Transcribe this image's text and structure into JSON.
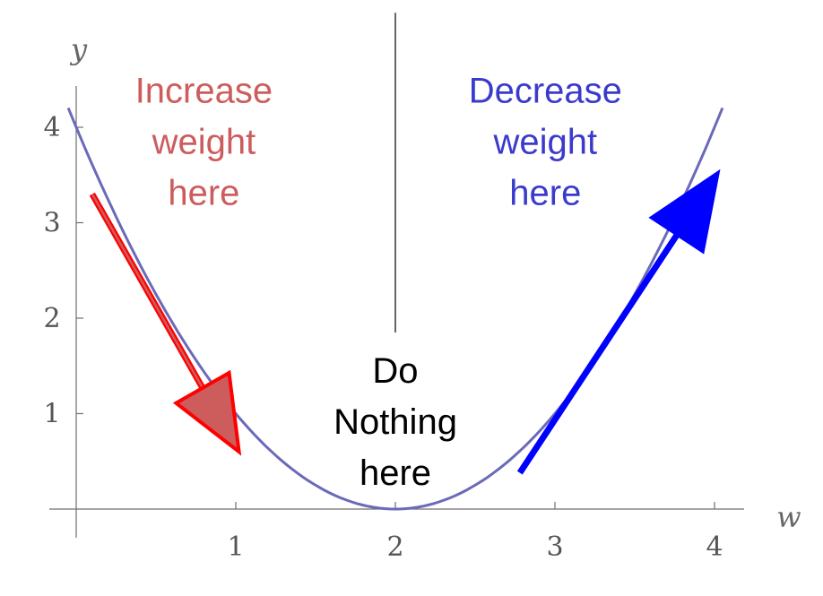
{
  "chart_data": {
    "type": "line",
    "xlabel": "w",
    "ylabel": "y",
    "xlim": [
      0,
      4.2
    ],
    "ylim": [
      0,
      4.3
    ],
    "x_ticks": [
      1,
      2,
      3,
      4
    ],
    "y_ticks": [
      1,
      2,
      3,
      4
    ],
    "series": [
      {
        "x": [
          -0.05,
          0.0,
          0.25,
          0.5,
          0.75,
          1.0,
          1.25,
          1.5,
          1.75,
          2.0,
          2.25,
          2.5,
          2.75,
          3.0,
          3.25,
          3.5,
          3.75,
          4.0,
          4.05
        ],
        "y": [
          4.2,
          4.0,
          3.06,
          2.25,
          1.56,
          1.0,
          0.56,
          0.25,
          0.06,
          0.0,
          0.06,
          0.25,
          0.56,
          1.0,
          1.56,
          2.25,
          3.06,
          4.0,
          4.2
        ],
        "color": "#6a6ab8"
      }
    ],
    "annotations": [
      {
        "lines": [
          "Increase",
          "weight",
          "here"
        ],
        "color": "#cd5c5c",
        "at": [
          0.8,
          4.35
        ],
        "arrow": {
          "from": [
            0.1,
            3.3
          ],
          "to": [
            1.02,
            0.6
          ],
          "color": "#ff0000",
          "fill": "#cd5c5c"
        }
      },
      {
        "lines": [
          "Decrease",
          "weight",
          "here"
        ],
        "color": "#3a3acd",
        "at": [
          2.94,
          4.35
        ],
        "arrow": {
          "from": [
            2.78,
            0.38
          ],
          "to": [
            4.02,
            3.52
          ],
          "color": "#0000ff",
          "fill": "#0000ff"
        }
      },
      {
        "lines": [
          "Do",
          "Nothing",
          "here"
        ],
        "color": "#000000",
        "at": [
          2.0,
          1.42
        ]
      }
    ],
    "divider_x": 2.0,
    "divider_y_range": [
      1.85,
      5.2
    ]
  }
}
